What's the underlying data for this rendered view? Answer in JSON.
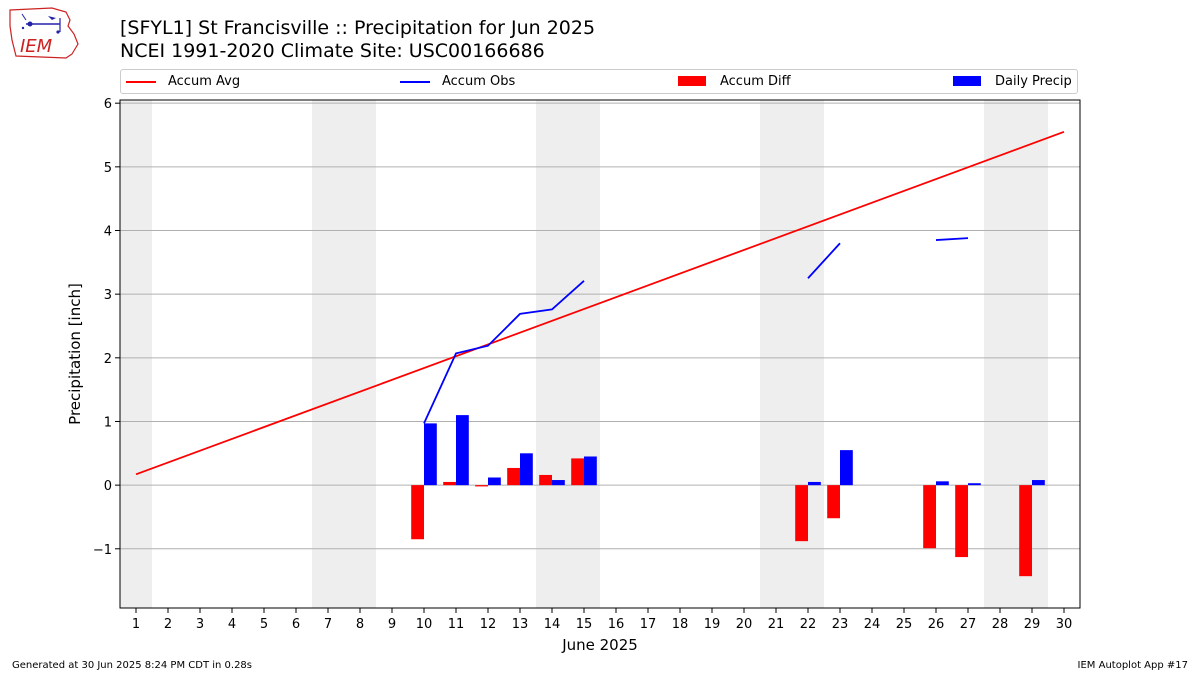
{
  "header": {
    "logo_text": "IEM",
    "title_line1": "[SFYL1] St Francisville :: Precipitation for Jun 2025",
    "title_line2": "NCEI 1991-2020 Climate Site: USC00166686"
  },
  "footer": {
    "generated": "Generated at 30 Jun 2025 8:24 PM CDT in 0.28s",
    "app": "IEM Autoplot App #17"
  },
  "colors": {
    "accum_avg": "#ff0000",
    "accum_obs": "#0000ff",
    "accum_diff": "#ff0000",
    "daily_precip": "#0000ff",
    "weekend_band": "#eeeeee",
    "grid": "#b0b0b0"
  },
  "chart_data": {
    "type": "bar",
    "title": "[SFYL1] St Francisville :: Precipitation for Jun 2025",
    "subtitle": "NCEI 1991-2020 Climate Site: USC00166686",
    "xlabel": "June 2025",
    "ylabel": "Precipitation [inch]",
    "xlim": [
      0.5,
      30.5
    ],
    "ylim": [
      -1.93,
      6.05
    ],
    "yticks": [
      -1,
      0,
      1,
      2,
      3,
      4,
      5,
      6
    ],
    "ytick_labels": [
      "−1",
      "0",
      "1",
      "2",
      "3",
      "4",
      "5",
      "6"
    ],
    "days": [
      1,
      2,
      3,
      4,
      5,
      6,
      7,
      8,
      9,
      10,
      11,
      12,
      13,
      14,
      15,
      16,
      17,
      18,
      19,
      20,
      21,
      22,
      23,
      24,
      25,
      26,
      27,
      28,
      29,
      30
    ],
    "weekend_bands": [
      [
        0.5,
        1.5
      ],
      [
        6.5,
        8.5
      ],
      [
        13.5,
        15.5
      ],
      [
        20.5,
        22.5
      ],
      [
        27.5,
        29.5
      ]
    ],
    "grid": "y",
    "legend_position": "top",
    "legend": [
      "Accum Avg",
      "Accum Obs",
      "Accum Diff",
      "Daily Precip"
    ],
    "accum_avg": {
      "name": "Accum Avg",
      "x": [
        1,
        30
      ],
      "y": [
        0.17,
        5.55
      ]
    },
    "accum_obs": {
      "name": "Accum Obs",
      "segments": [
        {
          "x": [
            10,
            11,
            12,
            13,
            14,
            15
          ],
          "y": [
            0.97,
            2.07,
            2.19,
            2.69,
            2.76,
            3.21
          ]
        },
        {
          "x": [
            22,
            23
          ],
          "y": [
            3.25,
            3.8
          ]
        },
        {
          "x": [
            26,
            27
          ],
          "y": [
            3.85,
            3.88
          ]
        }
      ]
    },
    "accum_diff": {
      "name": "Accum Diff",
      "x": [
        10,
        11,
        12,
        13,
        14,
        15,
        22,
        23,
        26,
        27,
        29
      ],
      "y": [
        -0.85,
        0.05,
        -0.02,
        0.27,
        0.16,
        0.42,
        -0.88,
        -0.52,
        -0.99,
        -1.13,
        -1.43
      ]
    },
    "daily_precip": {
      "name": "Daily Precip",
      "x": [
        10,
        11,
        12,
        13,
        14,
        15,
        22,
        23,
        26,
        27,
        29
      ],
      "y": [
        0.97,
        1.1,
        0.12,
        0.5,
        0.08,
        0.45,
        0.05,
        0.55,
        0.06,
        0.03,
        0.08
      ]
    }
  }
}
